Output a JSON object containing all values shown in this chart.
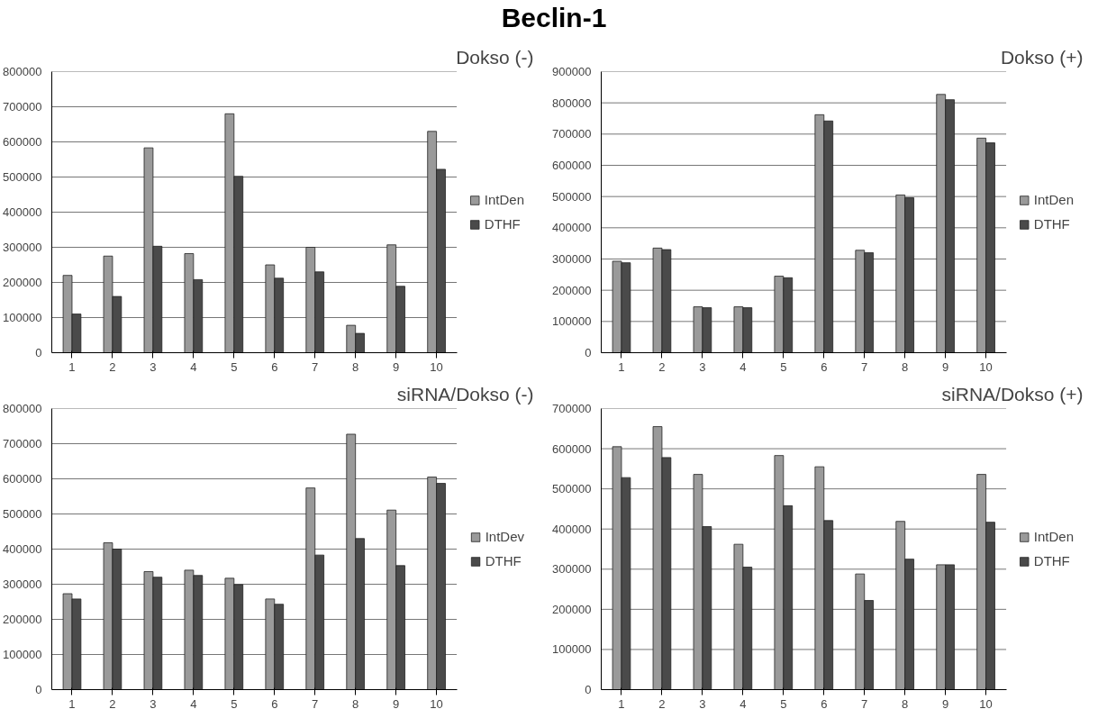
{
  "chart_data": [
    {
      "type": "bar",
      "title": "Dokso (-)",
      "annotations": [
        "Beclin-1"
      ],
      "categories": [
        "1",
        "2",
        "3",
        "4",
        "5",
        "6",
        "7",
        "8",
        "9",
        "10"
      ],
      "ylim": [
        0,
        800000
      ],
      "yticks": [
        0,
        100000,
        200000,
        300000,
        400000,
        500000,
        600000,
        700000,
        800000
      ],
      "grid": "y",
      "legend": "right",
      "series": [
        {
          "name": "IntDen",
          "color": "#9a9a9a",
          "values": [
            220000,
            275000,
            583000,
            282000,
            680000,
            250000,
            300000,
            78000,
            307000,
            630000
          ]
        },
        {
          "name": "DTHF",
          "color": "#4a4a4a",
          "values": [
            110000,
            160000,
            303000,
            208000,
            502000,
            212000,
            230000,
            55000,
            189000,
            522000
          ]
        }
      ]
    },
    {
      "type": "bar",
      "title": "Dokso (+)",
      "categories": [
        "1",
        "2",
        "3",
        "4",
        "5",
        "6",
        "7",
        "8",
        "9",
        "10"
      ],
      "ylim": [
        0,
        900000
      ],
      "yticks": [
        0,
        100000,
        200000,
        300000,
        400000,
        500000,
        600000,
        700000,
        800000,
        900000
      ],
      "grid": "y",
      "legend": "right",
      "series": [
        {
          "name": "IntDen",
          "color": "#9a9a9a",
          "values": [
            293000,
            335000,
            147000,
            147000,
            245000,
            762000,
            328000,
            505000,
            827000,
            687000
          ]
        },
        {
          "name": "DTHF",
          "color": "#4a4a4a",
          "values": [
            288000,
            330000,
            144000,
            144000,
            240000,
            742000,
            320000,
            496000,
            810000,
            672000
          ]
        }
      ]
    },
    {
      "type": "bar",
      "title": "siRNA/Dokso (-)",
      "categories": [
        "1",
        "2",
        "3",
        "4",
        "5",
        "6",
        "7",
        "8",
        "9",
        "10"
      ],
      "ylim": [
        0,
        800000
      ],
      "yticks": [
        0,
        100000,
        200000,
        300000,
        400000,
        500000,
        600000,
        700000,
        800000
      ],
      "grid": "y",
      "legend": "right",
      "series": [
        {
          "name": "IntDev",
          "color": "#9a9a9a",
          "values": [
            273000,
            418000,
            336000,
            340000,
            317000,
            258000,
            574000,
            727000,
            511000,
            605000
          ]
        },
        {
          "name": "DTHF",
          "color": "#4a4a4a",
          "values": [
            258000,
            400000,
            320000,
            325000,
            299000,
            243000,
            383000,
            430000,
            353000,
            587000
          ]
        }
      ]
    },
    {
      "type": "bar",
      "title": "siRNA/Dokso (+)",
      "categories": [
        "1",
        "2",
        "3",
        "4",
        "5",
        "6",
        "7",
        "8",
        "9",
        "10"
      ],
      "ylim": [
        0,
        700000
      ],
      "yticks": [
        0,
        100000,
        200000,
        300000,
        400000,
        500000,
        600000,
        700000
      ],
      "grid": "y",
      "legend": "right",
      "series": [
        {
          "name": "IntDen",
          "color": "#9a9a9a",
          "values": [
            605000,
            655000,
            536000,
            362000,
            583000,
            555000,
            288000,
            419000,
            311000,
            536000
          ]
        },
        {
          "name": "DTHF",
          "color": "#4a4a4a",
          "values": [
            528000,
            578000,
            406000,
            305000,
            458000,
            421000,
            222000,
            325000,
            311000,
            417000
          ]
        }
      ]
    }
  ]
}
